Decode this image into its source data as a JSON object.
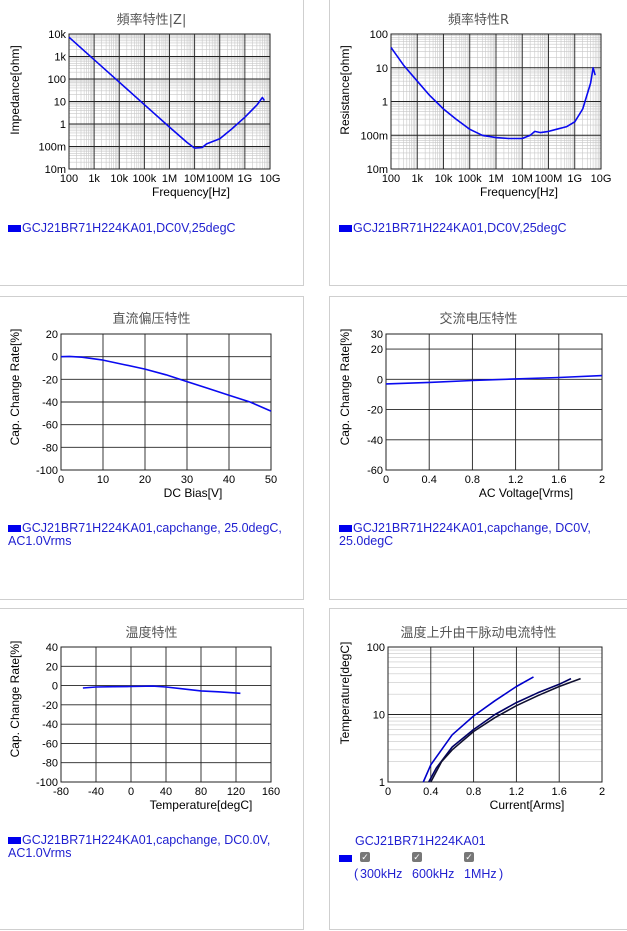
{
  "panels": [
    {
      "title": "頻率特性|Z|",
      "legend": "GCJ21BR71H224KA01,DC0V,25degC",
      "chart_data": {
        "type": "line",
        "xscale": "log",
        "yscale": "log",
        "xlabel": "Frequency[Hz]",
        "ylabel": "Impedance[ohm]",
        "xlim": [
          100,
          10000000000
        ],
        "ylim": [
          0.01,
          10000
        ],
        "xticks": [
          "100",
          "1k",
          "10k",
          "100k",
          "1M",
          "10M",
          "100M",
          "1G",
          "10G"
        ],
        "yticks": [
          "10k",
          "1k",
          "100",
          "10",
          "1",
          "100m",
          "10m"
        ],
        "series": [
          {
            "name": "GCJ21BR71H224KA01,DC0V,25degC",
            "x": [
              100,
              1000,
              10000,
              100000,
              1000000,
              5000000,
              10000000,
              20000000,
              30000000,
              100000000,
              300000000,
              1000000000,
              3000000000,
              5000000000,
              6000000000
            ],
            "y": [
              7230,
              723,
              72.3,
              7.2,
              0.73,
              0.15,
              0.085,
              0.09,
              0.13,
              0.22,
              0.6,
              2.0,
              7.0,
              15,
              11
            ]
          }
        ]
      }
    },
    {
      "title": "頻率特性R",
      "legend": "GCJ21BR71H224KA01,DC0V,25degC",
      "chart_data": {
        "type": "line",
        "xscale": "log",
        "yscale": "log",
        "xlabel": "Frequency[Hz]",
        "ylabel": "Resistance[ohm]",
        "xlim": [
          100,
          10000000000
        ],
        "ylim": [
          0.01,
          100
        ],
        "xticks": [
          "100",
          "1k",
          "10k",
          "100k",
          "1M",
          "10M",
          "100M",
          "1G",
          "10G"
        ],
        "yticks": [
          "100",
          "10",
          "1",
          "100m",
          "10m"
        ],
        "series": [
          {
            "name": "GCJ21BR71H224KA01,DC0V,25degC",
            "x": [
              100,
              300,
              1000,
              3000,
              10000,
              30000,
              100000,
              300000,
              1000000,
              3000000,
              10000000,
              20000000,
              30000000,
              50000000,
              100000000,
              200000000,
              500000000,
              1000000000,
              2000000000,
              4000000000,
              5000000000,
              6000000000
            ],
            "y": [
              40,
              12,
              4,
              1.5,
              0.6,
              0.3,
              0.15,
              0.1,
              0.085,
              0.08,
              0.08,
              0.1,
              0.13,
              0.12,
              0.13,
              0.15,
              0.18,
              0.25,
              0.6,
              3.5,
              10,
              6
            ]
          }
        ]
      }
    },
    {
      "title": "直流偏压特性",
      "legend": "GCJ21BR71H224KA01,capchange, 25.0degC, AC1.0Vrms",
      "chart_data": {
        "type": "line",
        "xlabel": "DC Bias[V]",
        "ylabel": "Cap. Change Rate[%]",
        "xlim": [
          0,
          50
        ],
        "ylim": [
          -100,
          20
        ],
        "xticks": [
          "0",
          "10",
          "20",
          "30",
          "40",
          "50"
        ],
        "yticks": [
          "20",
          "0",
          "-20",
          "-40",
          "-60",
          "-80",
          "-100"
        ],
        "series": [
          {
            "name": "GCJ21BR71H224KA01,capchange, 25.0degC, AC1.0Vrms",
            "x": [
              0,
              2,
              5,
              10,
              15,
              20,
              25,
              30,
              35,
              40,
              45,
              50
            ],
            "y": [
              0,
              0.2,
              -0.5,
              -3,
              -7,
              -11,
              -16,
              -22,
              -28,
              -34,
              -40,
              -48
            ]
          }
        ]
      }
    },
    {
      "title": "交流电压特性",
      "legend": "GCJ21BR71H224KA01,capchange, DC0V, 25.0degC",
      "chart_data": {
        "type": "line",
        "xlabel": "AC Voltage[Vrms]",
        "ylabel": "Cap. Change Rate[%]",
        "xlim": [
          0,
          2
        ],
        "ylim": [
          -60,
          30
        ],
        "xticks": [
          "0",
          "0.4",
          "0.8",
          "1.2",
          "1.6",
          "2"
        ],
        "yticks": [
          "30",
          "20",
          "0",
          "-20",
          "-40",
          "-60"
        ],
        "series": [
          {
            "name": "GCJ21BR71H224KA01,capchange, DC0V, 25.0degC",
            "x": [
              0,
              0.4,
              0.8,
              1.2,
              1.6,
              2
            ],
            "y": [
              -3,
              -2,
              -0.8,
              0.3,
              1.2,
              2.5
            ]
          }
        ]
      }
    },
    {
      "title": "温度特性",
      "legend": "GCJ21BR71H224KA01,capchange, DC0.0V, AC1.0Vrms",
      "chart_data": {
        "type": "line",
        "xlabel": "Temperature[degC]",
        "ylabel": "Cap. Change Rate[%]",
        "xlim": [
          -80,
          160
        ],
        "ylim": [
          -100,
          40
        ],
        "xticks": [
          "-80",
          "-40",
          "0",
          "40",
          "80",
          "120",
          "160"
        ],
        "yticks": [
          "40",
          "20",
          "0",
          "-20",
          "-40",
          "-60",
          "-80",
          "-100"
        ],
        "series": [
          {
            "name": "GCJ21BR71H224KA01,capchange, DC0.0V, AC1.0Vrms",
            "x": [
              -55,
              -40,
              -20,
              0,
              25,
              40,
              60,
              80,
              100,
              125
            ],
            "y": [
              -2.5,
              -1.5,
              -1.2,
              -1,
              -0.5,
              -1.5,
              -3.5,
              -5.5,
              -6.5,
              -8
            ]
          }
        ]
      }
    },
    {
      "title": "温度上升由干脉动电流特性",
      "legend": "GCJ21BR71H224KA01",
      "checks": [
        "300kHz",
        "600kHz",
        "1MHz"
      ],
      "chart_data": {
        "type": "line",
        "yscale": "log",
        "xlabel": "Current[Arms]",
        "ylabel": "Temperature[degC]",
        "xlim": [
          0,
          2
        ],
        "ylim": [
          1,
          100
        ],
        "xticks": [
          "0",
          "0.4",
          "0.8",
          "1.2",
          "1.6",
          "2"
        ],
        "yticks": [
          "100",
          "10",
          "1"
        ],
        "series": [
          {
            "name": "300kHz",
            "color": "#0000cc",
            "x": [
              0.33,
              0.4,
              0.5,
              0.6,
              0.8,
              1.0,
              1.2,
              1.36
            ],
            "y": [
              1,
              1.8,
              3.0,
              5.0,
              9.5,
              16,
              26,
              36
            ]
          },
          {
            "name": "600kHz",
            "color": "#000066",
            "x": [
              0.38,
              0.45,
              0.6,
              0.8,
              1.0,
              1.2,
              1.4,
              1.6,
              1.71
            ],
            "y": [
              1,
              1.6,
              3.3,
              6.0,
              10,
              15,
              21,
              28,
              34
            ]
          },
          {
            "name": "1MHz",
            "color": "#101030",
            "x": [
              0.4,
              0.5,
              0.6,
              0.8,
              1.0,
              1.2,
              1.4,
              1.6,
              1.8
            ],
            "y": [
              1,
              2.0,
              3.0,
              5.6,
              9,
              13.5,
              19,
              26,
              34
            ]
          }
        ]
      }
    }
  ]
}
